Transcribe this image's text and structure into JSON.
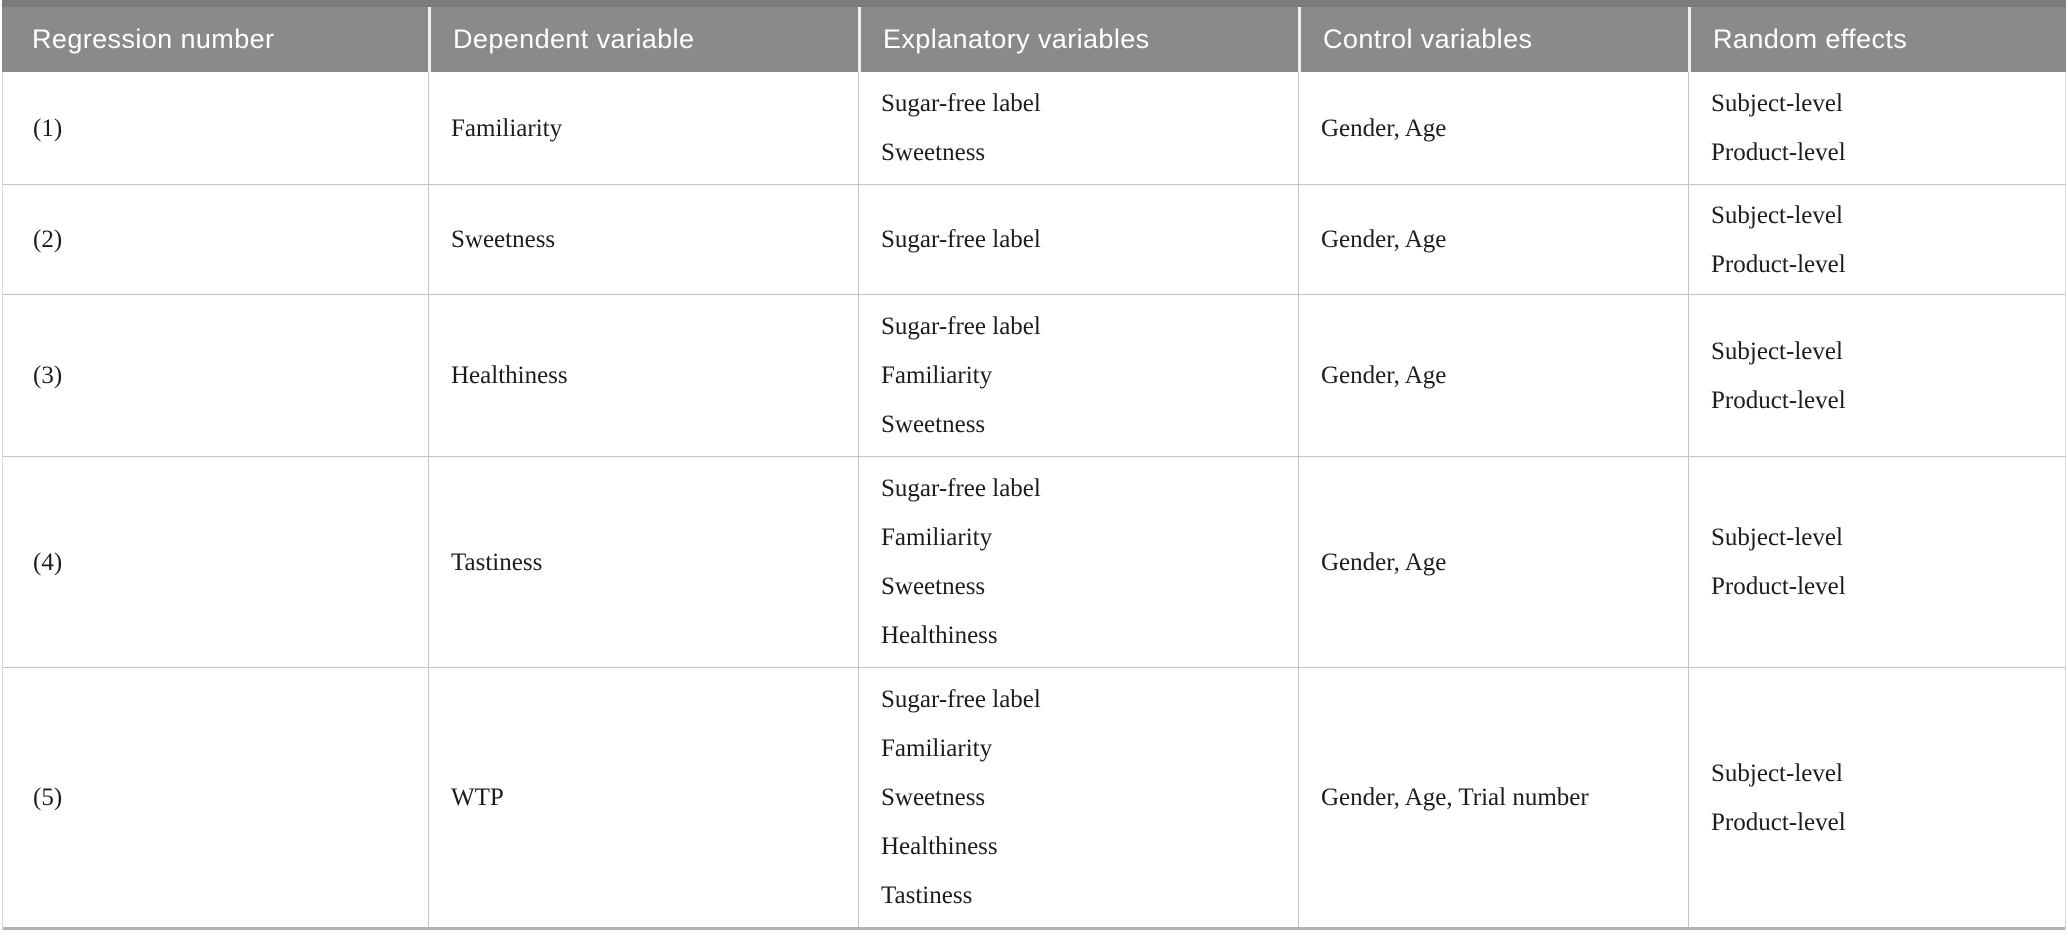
{
  "table": {
    "columns": [
      {
        "label": "Regression number"
      },
      {
        "label": "Dependent variable"
      },
      {
        "label": "Explanatory variables"
      },
      {
        "label": "Control variables"
      },
      {
        "label": "Random effects"
      }
    ],
    "rows": [
      {
        "number": "(1)",
        "dependent": "Familiarity",
        "explanatory": [
          "Sugar-free label",
          "Sweetness"
        ],
        "control": "Gender, Age",
        "random": [
          "Subject-level",
          "Product-level"
        ]
      },
      {
        "number": "(2)",
        "dependent": "Sweetness",
        "explanatory": [
          "Sugar-free label"
        ],
        "control": "Gender, Age",
        "random": [
          "Subject-level",
          "Product-level"
        ]
      },
      {
        "number": "(3)",
        "dependent": "Healthiness",
        "explanatory": [
          "Sugar-free label",
          "Familiarity",
          "Sweetness"
        ],
        "control": "Gender, Age",
        "random": [
          "Subject-level",
          "Product-level"
        ]
      },
      {
        "number": "(4)",
        "dependent": "Tastiness",
        "explanatory": [
          "Sugar-free label",
          "Familiarity",
          "Sweetness",
          "Healthiness"
        ],
        "control": "Gender, Age",
        "random": [
          "Subject-level",
          "Product-level"
        ]
      },
      {
        "number": "(5)",
        "dependent": "WTP",
        "explanatory": [
          "Sugar-free label",
          "Familiarity",
          "Sweetness",
          "Healthiness",
          "Tastiness"
        ],
        "control": "Gender, Age, Trial number",
        "random": [
          "Subject-level",
          "Product-level"
        ]
      }
    ]
  },
  "colors": {
    "header_bg": "#8a8a8a",
    "header_top_border": "#7b7b7b",
    "header_text": "#ffffff",
    "header_divider": "#f0f0f0",
    "body_text": "#1c1c1c",
    "grid_line": "#c4c4c4",
    "table_edge": "#d9d9d9",
    "bottom_border": "#b3b3b3",
    "page_bg": "#ffffff"
  }
}
